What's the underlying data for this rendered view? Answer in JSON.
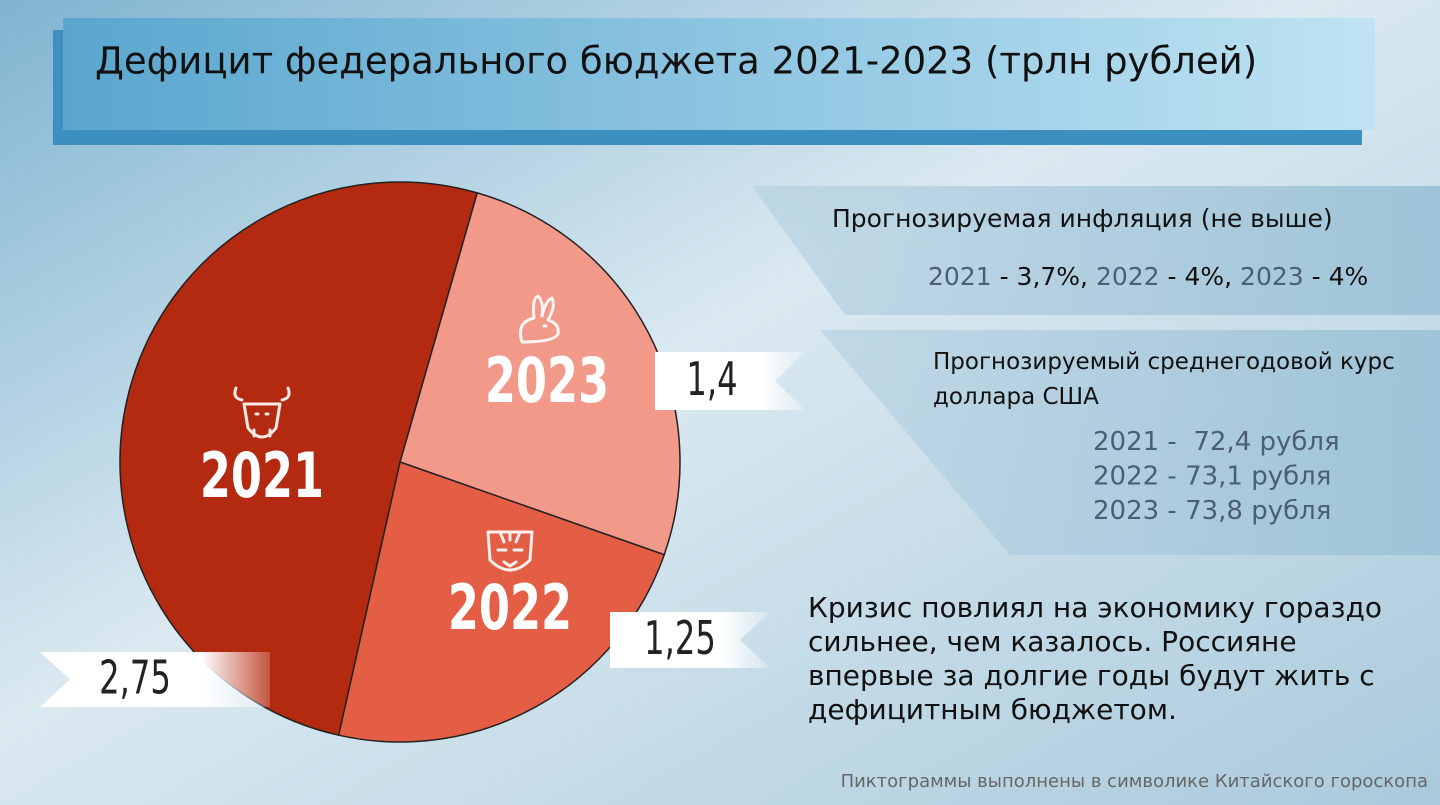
{
  "title": "Дефицит федерального бюджета 2021-2023  (трлн рублей)",
  "chart_data": {
    "type": "pie",
    "categories": [
      "2021",
      "2022",
      "2023"
    ],
    "values": [
      2.75,
      1.25,
      1.4
    ],
    "value_labels": [
      "2,75",
      "1,25",
      "1,4"
    ],
    "colors": [
      "#b42a10",
      "#e45e45",
      "#f3998a"
    ]
  },
  "inflation": {
    "title": "Прогнозируемая инфляция (не выше)",
    "items": [
      {
        "year": "2021",
        "value": " - 3,7%, "
      },
      {
        "year": "2022",
        "value": " - 4%, "
      },
      {
        "year": "2023",
        "value": " - 4%"
      }
    ]
  },
  "exchange": {
    "title": [
      "Прогнозируемый среднегодовой курс",
      "доллара США"
    ],
    "rates": [
      "2021 -  72,4 рубля",
      "2022 - 73,1 рубля",
      "2023 - 73,8 рубля"
    ]
  },
  "note": [
    "Кризис повлиял на экономику гораздо",
    "сильнее, чем казалось. Россияне",
    "впервые за долгие годы будут жить с",
    "дефицитным бюджетом."
  ],
  "footer": "Пиктограммы выполнены в символике Китайского гороскопа"
}
